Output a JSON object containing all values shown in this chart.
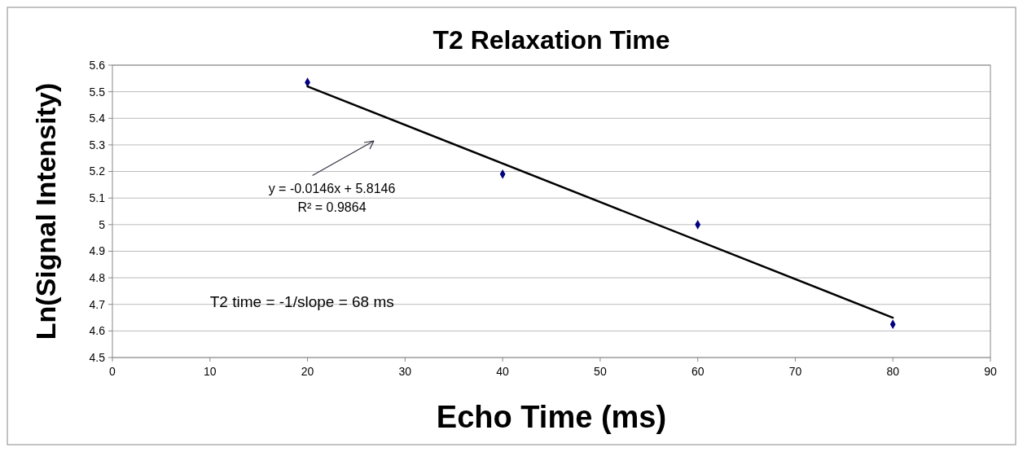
{
  "chart_data": {
    "type": "scatter",
    "title": "T2 Relaxation Time",
    "xlabel": "Echo Time (ms)",
    "ylabel": "Ln(Signal Intensity)",
    "xlim": [
      0,
      90
    ],
    "xticks": [
      0,
      10,
      20,
      30,
      40,
      50,
      60,
      70,
      80,
      90
    ],
    "ylim": [
      4.5,
      5.6
    ],
    "yticks": [
      4.5,
      4.6,
      4.7,
      4.8,
      4.9,
      5,
      5.1,
      5.2,
      5.3,
      5.4,
      5.5,
      5.6
    ],
    "grid": "y",
    "marker": "diamond",
    "series": [
      {
        "color": "#000080",
        "x": [
          20,
          40,
          60,
          80
        ],
        "values": [
          5.535,
          5.19,
          5.0,
          4.625
        ]
      },
      {
        "type": "line",
        "color": "#000000",
        "x": [
          20,
          80
        ],
        "values": [
          5.52,
          4.65
        ],
        "marker": "none",
        "line_style": "solid"
      }
    ],
    "annotations": [
      "y = -0.0146x + 5.8146",
      "R² = 0.9864",
      "T2 time = -1/slope = 68 ms"
    ]
  }
}
